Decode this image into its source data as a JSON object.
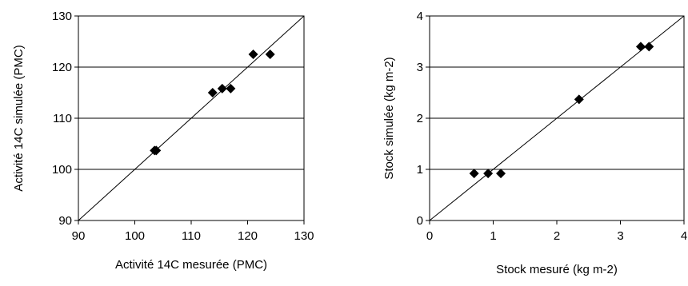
{
  "chart_data": [
    {
      "type": "scatter",
      "title": "",
      "xlabel": "Activité 14C mesurée (PMC)",
      "ylabel": "Activité 14C simulée (PMC)",
      "xlim": [
        90,
        130
      ],
      "ylim": [
        90,
        130
      ],
      "xticks": [
        90,
        100,
        110,
        120,
        130
      ],
      "yticks": [
        90,
        100,
        110,
        120,
        130
      ],
      "x_tick_labels": [
        "90",
        "100",
        "110",
        "120",
        "130"
      ],
      "y_tick_labels": [
        "90",
        "100",
        "110",
        "120",
        "130"
      ],
      "grid": "horizontal",
      "reference_line": "1:1",
      "marker": "diamond",
      "series": [
        {
          "x": [
            103.5,
            103.8,
            113.8,
            115.5,
            117.0,
            121.0,
            124.0
          ],
          "y": [
            103.7,
            103.7,
            115.0,
            115.8,
            115.8,
            122.5,
            122.5
          ]
        }
      ]
    },
    {
      "type": "scatter",
      "title": "",
      "xlabel": "Stock mesuré (kg m-2)",
      "ylabel": "Stock simulée (kg m-2)",
      "xlim": [
        0,
        4
      ],
      "ylim": [
        0,
        4
      ],
      "xticks": [
        0,
        1,
        2,
        3,
        4
      ],
      "yticks": [
        0,
        1,
        2,
        3,
        4
      ],
      "x_tick_labels": [
        "0",
        "1",
        "2",
        "3",
        "4"
      ],
      "y_tick_labels": [
        "0",
        "1",
        "2",
        "3",
        "4"
      ],
      "grid": "horizontal",
      "reference_line": "1:1",
      "marker": "diamond",
      "series": [
        {
          "x": [
            0.7,
            0.92,
            1.12,
            2.35,
            3.32,
            3.45
          ],
          "y": [
            0.92,
            0.92,
            0.92,
            2.37,
            3.4,
            3.4
          ]
        }
      ]
    }
  ]
}
